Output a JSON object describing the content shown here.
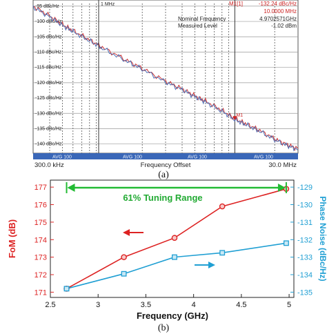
{
  "chart_data": [
    {
      "type": "line",
      "panel_label": "(a)",
      "marker": {
        "label": "M1[1]",
        "value_text": "-132.24 dBc/Hz",
        "freq_text": "10.0000 MHz",
        "point_label": "M1",
        "x_mhz": 10.0,
        "y": -132.24
      },
      "readouts": [
        {
          "label": "Nominal Frequency",
          "value": "4.9702571GHz"
        },
        {
          "label": "Measured Level",
          "value": "-1.02 dBm"
        }
      ],
      "ytick_labels": [
        "-95 dBc/Hz",
        "-100 dBc/Hz",
        "-105 dBc/Hz",
        "-110 dBc/Hz",
        "-115 dBc/Hz",
        "-120 dBc/Hz",
        "-125 dBc/Hz",
        "-130 dBc/Hz",
        "-135 dBc/Hz",
        "-140 dBc/Hz"
      ],
      "yticks": [
        -95,
        -100,
        -105,
        -110,
        -115,
        -120,
        -125,
        -130,
        -135,
        -140
      ],
      "ylim": [
        -143,
        -93
      ],
      "xlim_mhz": [
        0.3,
        30
      ],
      "x_marker_label": "1 MHz",
      "avg_labels": [
        "AVG 100",
        "AVG 100",
        "AVG 100",
        "AVG 100"
      ],
      "x_start_label": "300.0 kHz",
      "x_end_label": "30.0 MHz",
      "xlabel": "Frequency Offset",
      "series": [
        {
          "color": "#cc3333",
          "x_mhz": [
            0.3,
            0.4,
            0.5,
            0.6,
            0.8,
            1.0,
            1.5,
            2.0,
            3.0,
            4.0,
            5.0,
            6.0,
            8.0,
            10.0,
            12.0,
            15.0,
            20.0,
            25.0,
            30.0
          ],
          "y": [
            -95,
            -98.2,
            -101,
            -103,
            -106,
            -108.5,
            -112.5,
            -115.3,
            -119.5,
            -122,
            -124.3,
            -126,
            -129,
            -131.8,
            -133.3,
            -135.3,
            -138.3,
            -140.3,
            -141.5
          ]
        },
        {
          "color": "#4a6fb5",
          "x_mhz": [
            0.3,
            0.4,
            0.5,
            0.6,
            0.8,
            1.0,
            1.5,
            2.0,
            3.0,
            4.0,
            5.0,
            6.0,
            8.0,
            10.0,
            12.0,
            15.0,
            20.0,
            25.0,
            30.0
          ],
          "y": [
            -95.3,
            -98.5,
            -101.3,
            -103.3,
            -106.3,
            -108.8,
            -112.8,
            -115.6,
            -119.8,
            -122.3,
            -124.6,
            -126.3,
            -129.3,
            -132.1,
            -133.6,
            -135.6,
            -138.6,
            -140.6,
            -141.8
          ]
        }
      ]
    },
    {
      "type": "line",
      "panel_label": "(b)",
      "annotation": "61% Tuning Range",
      "xlabel": "Frequency (GHz)",
      "ylabel_left": "FoM (dB)",
      "ylabel_right": "Phase Noise (dBc/Hz)",
      "xlim": [
        2.5,
        5.05
      ],
      "xticks": [
        2.5,
        3,
        3.5,
        4,
        4.5,
        5
      ],
      "xtick_labels": [
        "2.5",
        "3",
        "3.5",
        "4",
        "4.5",
        "5"
      ],
      "ylim_left": [
        170.7,
        177.4
      ],
      "yticks_left": [
        171,
        172,
        173,
        174,
        175,
        176,
        177
      ],
      "ytick_labels_left": [
        "171",
        "172",
        "173",
        "174",
        "175",
        "176",
        "177"
      ],
      "ylim_right": [
        -135.3,
        -128.6
      ],
      "yticks_right": [
        -129,
        -130,
        -131,
        -132,
        -133,
        -134,
        -135
      ],
      "ytick_labels_right": [
        "-129",
        "-130",
        "-131",
        "-132",
        "-133",
        "-134",
        "-135"
      ],
      "series": [
        {
          "axis": "left",
          "color": "#dd2222",
          "marker": "circle",
          "x": [
            2.67,
            3.27,
            3.8,
            4.3,
            4.97
          ],
          "y": [
            171.2,
            173.0,
            174.1,
            175.9,
            176.9
          ]
        },
        {
          "axis": "right",
          "color": "#1f9fd3",
          "marker": "square",
          "x": [
            2.67,
            3.27,
            3.8,
            4.3,
            4.97
          ],
          "y": [
            -134.8,
            -133.95,
            -133.0,
            -132.75,
            -132.2
          ]
        }
      ],
      "colors": {
        "left_axis": "#dd2222",
        "right_axis": "#1f9fd3",
        "range_arrow": "#22bb33"
      }
    }
  ]
}
